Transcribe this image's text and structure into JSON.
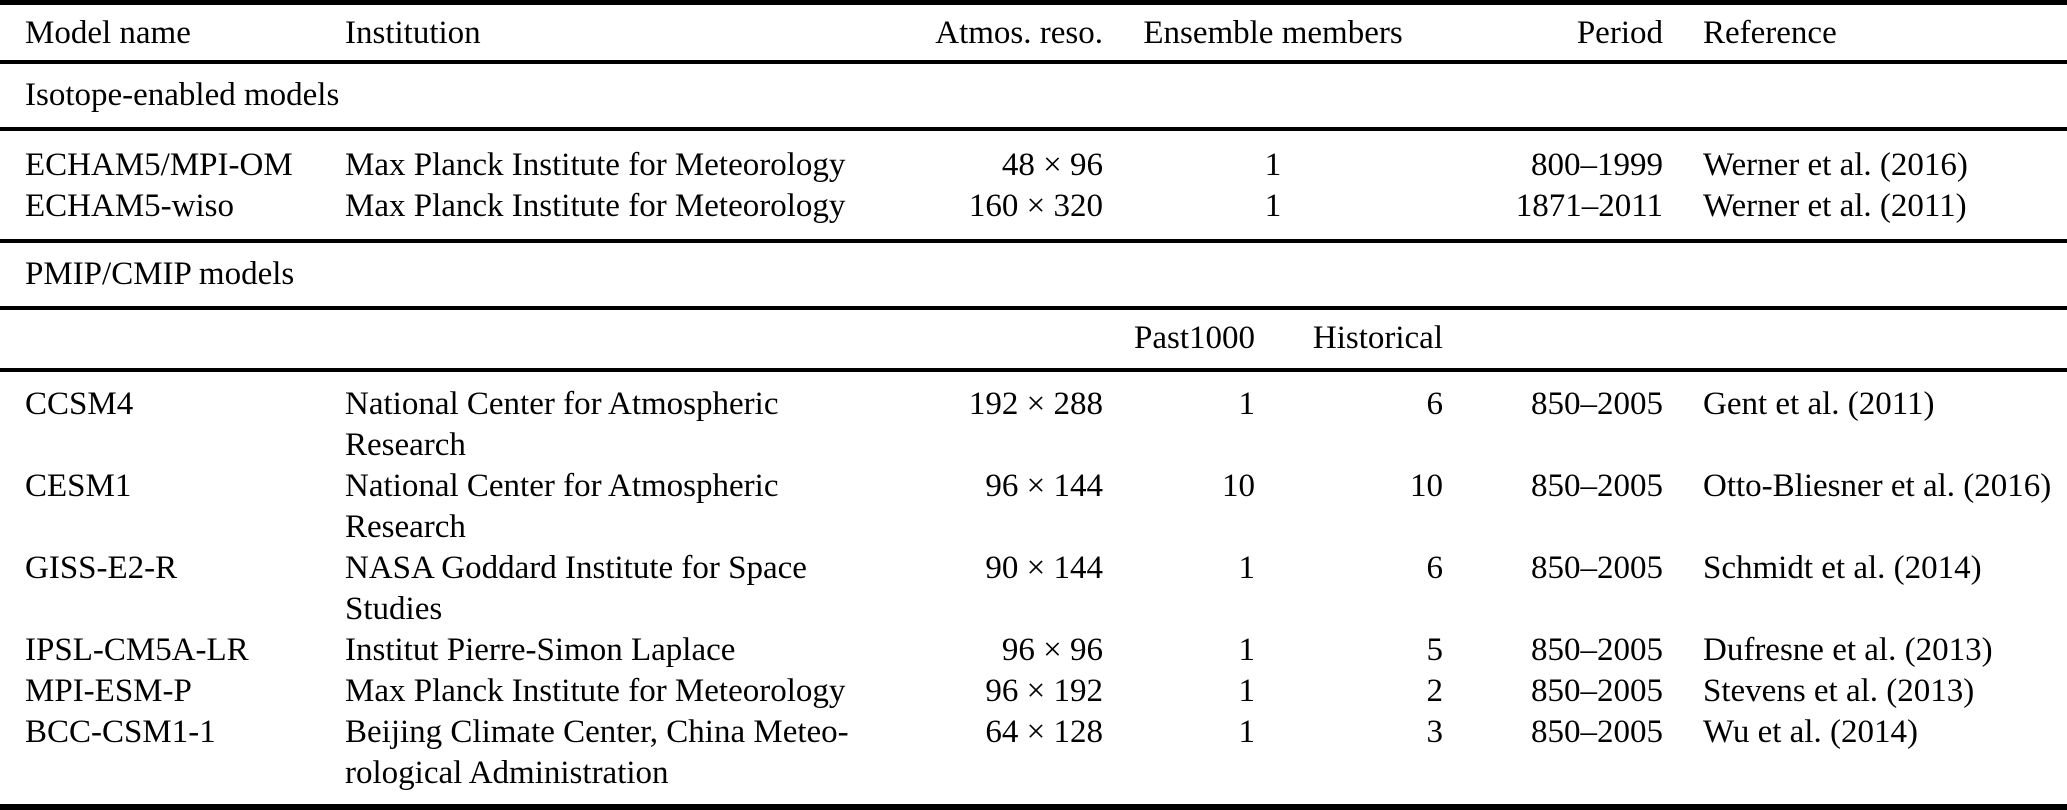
{
  "table": {
    "header": {
      "model": "Model name",
      "institution": "Institution",
      "atmos": "Atmos. reso.",
      "ensemble": "Ensemble members",
      "period": "Period",
      "reference": "Reference"
    },
    "sections": [
      {
        "title": "Isotope-enabled models",
        "rows": [
          {
            "model": "ECHAM5/MPI-OM",
            "institution": [
              "Max Planck Institute for Meteorology"
            ],
            "atmos": "48 × 96",
            "ensemble": "1",
            "period": "800–1999",
            "reference": "Werner et al. (2016)"
          },
          {
            "model": "ECHAM5-wiso",
            "institution": [
              "Max Planck Institute for Meteorology"
            ],
            "atmos": "160 × 320",
            "ensemble": "1",
            "period": "1871–2011",
            "reference": "Werner et al. (2011)"
          }
        ]
      },
      {
        "title": "PMIP/CMIP models",
        "subcolumns": {
          "past1000": "Past1000",
          "historical": "Historical"
        },
        "rows": [
          {
            "model": "CCSM4",
            "institution": [
              "National Center for Atmospheric",
              "Research"
            ],
            "atmos": "192 × 288",
            "past1000": "1",
            "historical": "6",
            "period": "850–2005",
            "reference": "Gent et al. (2011)"
          },
          {
            "model": "CESM1",
            "institution": [
              "National Center for Atmospheric",
              "Research"
            ],
            "atmos": "96 × 144",
            "past1000": "10",
            "historical": "10",
            "period": "850–2005",
            "reference": "Otto-Bliesner et al. (2016)"
          },
          {
            "model": "GISS-E2-R",
            "institution": [
              "NASA Goddard Institute for Space",
              "Studies"
            ],
            "atmos": "90 × 144",
            "past1000": "1",
            "historical": "6",
            "period": "850–2005",
            "reference": "Schmidt et al. (2014)"
          },
          {
            "model": "IPSL-CM5A-LR",
            "institution": [
              "Institut Pierre-Simon Laplace"
            ],
            "atmos": "96 × 96",
            "past1000": "1",
            "historical": "5",
            "period": "850–2005",
            "reference": "Dufresne et al. (2013)"
          },
          {
            "model": "MPI-ESM-P",
            "institution": [
              "Max Planck Institute for Meteorology"
            ],
            "atmos": "96 × 192",
            "past1000": "1",
            "historical": "2",
            "period": "850–2005",
            "reference": "Stevens et al. (2013)"
          },
          {
            "model": "BCC-CSM1-1",
            "institution": [
              "Beijing Climate Center, China Meteo-",
              "rological Administration"
            ],
            "atmos": "64 × 128",
            "past1000": "1",
            "historical": "3",
            "period": "850–2005",
            "reference": "Wu et al. (2014)"
          }
        ]
      }
    ]
  }
}
